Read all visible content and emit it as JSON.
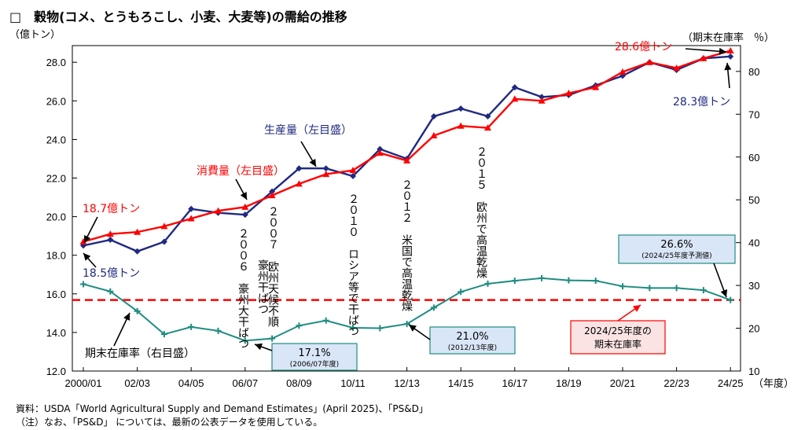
{
  "title": "□　穀物(コメ、とうもろこし、小麦、大麦等)の需給の推移",
  "source_line": "資料：USDA「World Agricultural Supply and Demand Estimates」(April 2025)、「PS&D」",
  "note_line": "（注）なお、「PS&D」 については、最新の公表データを使用している。",
  "chart_data": {
    "type": "line",
    "left_axis": {
      "label": "（億トン）",
      "range": [
        12,
        29.5
      ],
      "ticks": [
        "12.0",
        "14.0",
        "16.0",
        "18.0",
        "20.0",
        "22.0",
        "24.0",
        "26.0",
        "28.0"
      ]
    },
    "right_axis": {
      "label": "（期末在庫率　％）",
      "range": [
        10,
        85
      ],
      "ticks": [
        "10",
        "20",
        "30",
        "40",
        "50",
        "60",
        "70",
        "80"
      ]
    },
    "x_axis": {
      "unit": "（年度）",
      "tick_labels": [
        "2000/01",
        "02/03",
        "04/05",
        "06/07",
        "08/09",
        "10/11",
        "12/13",
        "14/15",
        "16/17",
        "18/19",
        "20/21",
        "22/23",
        "24/25"
      ]
    },
    "series": [
      {
        "name": "生産量（左目盛）",
        "axis": "left",
        "color": "#1f2a80",
        "marker": "diamond",
        "values": [
          18.5,
          18.8,
          18.2,
          18.7,
          20.4,
          20.2,
          20.1,
          21.3,
          22.5,
          22.5,
          22.1,
          23.5,
          23.0,
          25.2,
          25.6,
          25.2,
          26.7,
          26.2,
          26.3,
          26.8,
          27.3,
          28.0,
          27.6,
          28.2,
          28.3
        ]
      },
      {
        "name": "消費量（左目盛）",
        "axis": "left",
        "color": "#ff0000",
        "marker": "triangle",
        "values": [
          18.7,
          19.1,
          19.2,
          19.5,
          19.9,
          20.3,
          20.5,
          21.1,
          21.7,
          22.2,
          22.4,
          23.3,
          22.9,
          24.2,
          24.7,
          24.6,
          26.1,
          26.0,
          26.4,
          26.7,
          27.5,
          28.0,
          27.7,
          28.2,
          28.6
        ]
      },
      {
        "name": "期末在庫率（右目盛）",
        "axis": "right",
        "color": "#1f8c80",
        "marker": "cross",
        "values": [
          30.3,
          28.6,
          24.0,
          18.6,
          20.3,
          19.4,
          17.1,
          17.6,
          20.6,
          21.8,
          20.1,
          20.0,
          21.0,
          24.8,
          28.5,
          30.4,
          31.1,
          31.7,
          31.2,
          31.1,
          29.8,
          29.4,
          29.4,
          28.9,
          26.6
        ]
      }
    ],
    "reference_line": {
      "axis": "right",
      "value": 26.6,
      "color": "#ff0000",
      "style": "dashed"
    },
    "series_labels": [
      {
        "text": "生産量（左目盛）",
        "color": "#1f2a80"
      },
      {
        "text": "消費量（左目盛）",
        "color": "#ff0000"
      },
      {
        "text": "期末在庫率（右目盛）",
        "color": "#000000"
      }
    ],
    "value_labels": [
      {
        "text": "18.7億トン",
        "color": "#ff0000"
      },
      {
        "text": "18.5億トン",
        "color": "#1f2a80"
      },
      {
        "text": "28.6億トン",
        "color": "#ff0000"
      },
      {
        "text": "28.3億トン",
        "color": "#1f2a80"
      }
    ],
    "vertical_annotations": [
      {
        "text": "２００６　豪州大干ばつ",
        "color": "#000000"
      },
      {
        "text": "２００７　欧州天候不順",
        "color": "#000000"
      },
      {
        "text": "豪州干ばつ",
        "color": "#000000"
      },
      {
        "text": "２０１０　ロシア等で干ばつ",
        "color": "#000000"
      },
      {
        "text": "２０１２　米国で高温乾燥",
        "color": "#000000"
      },
      {
        "text": "２０１５　欧州で高温乾燥",
        "color": "#000000"
      }
    ],
    "callouts": [
      {
        "main": "17.1%",
        "sub": "(2006/07年度)",
        "fill": "#d9e6f7",
        "stroke": "#1f8c80"
      },
      {
        "main": "21.0%",
        "sub": "(2012/13年度)",
        "fill": "#d9e6f7",
        "stroke": "#1f8c80"
      },
      {
        "main": "26.6%",
        "sub": "(2024/25年度予測値)",
        "fill": "#d9e6f7",
        "stroke": "#1f8c80"
      },
      {
        "main": "2024/25年度の",
        "sub": "期末在庫率",
        "fill": "#fbe3e3",
        "stroke": "#ff0000"
      }
    ]
  }
}
